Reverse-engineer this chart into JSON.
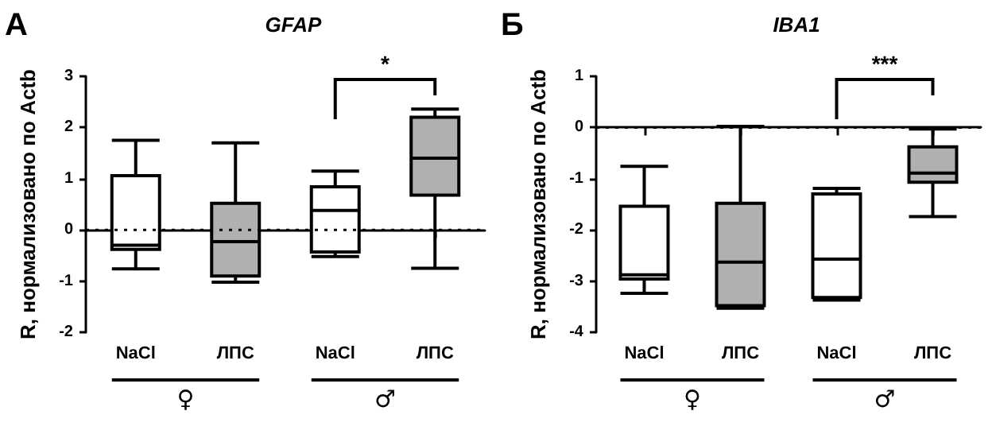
{
  "chart_data": [
    {
      "type": "box",
      "title": "GFAP",
      "ylabel": "R, нормализовано по Actb",
      "categories": [
        "NaCl",
        "ЛПС",
        "NaCl",
        "ЛПС"
      ],
      "colors": [
        "#ffffff",
        "#b0b0b0",
        "#ffffff",
        "#b0b0b0"
      ],
      "boxes": [
        {
          "low": -0.76,
          "q1": -0.38,
          "median": -0.3,
          "q3": 1.06,
          "high": 1.75
        },
        {
          "low": -1.02,
          "q1": -0.9,
          "median": -0.23,
          "q3": 0.52,
          "high": 1.7
        },
        {
          "low": -0.52,
          "q1": -0.43,
          "median": 0.38,
          "q3": 0.84,
          "high": 1.15
        },
        {
          "low": -0.75,
          "q1": 0.68,
          "median": 1.4,
          "q3": 2.2,
          "high": 2.36
        }
      ],
      "ylim": [
        -2,
        3
      ],
      "yticks": [
        -2,
        -1,
        0,
        1,
        2,
        3
      ],
      "grid": false,
      "ref_lines": [
        {
          "axis": "y",
          "value": 0,
          "line_style": "dotted",
          "color": "#000000"
        }
      ],
      "annotations": [
        "A",
        "*",
        "♀",
        "♂"
      ]
    },
    {
      "type": "box",
      "title": "IBA1",
      "ylabel": "R, нормализовано по Actb",
      "categories": [
        "NaCl",
        "ЛПС",
        "NaCl",
        "ЛПС"
      ],
      "colors": [
        "#ffffff",
        "#b0b0b0",
        "#ffffff",
        "#b0b0b0"
      ],
      "boxes": [
        {
          "low": -3.24,
          "q1": -2.96,
          "median": -2.88,
          "q3": -1.54,
          "high": -0.76
        },
        {
          "low": -3.53,
          "q1": -3.48,
          "median": -2.63,
          "q3": -1.48,
          "high": 0.02
        },
        {
          "low": -3.37,
          "q1": -3.32,
          "median": -2.57,
          "q3": -1.3,
          "high": -1.19
        },
        {
          "low": -1.74,
          "q1": -1.07,
          "median": -0.89,
          "q3": -0.38,
          "high": -0.03
        }
      ],
      "ylim": [
        -4,
        1
      ],
      "yticks": [
        -4,
        -3,
        -2,
        -1,
        0,
        1
      ],
      "grid": false,
      "ref_lines": [
        {
          "axis": "y",
          "value": 0,
          "line_style": "dotted",
          "color": "#000000"
        }
      ],
      "annotations": [
        "Б",
        "***",
        "♀",
        "♂"
      ]
    }
  ]
}
